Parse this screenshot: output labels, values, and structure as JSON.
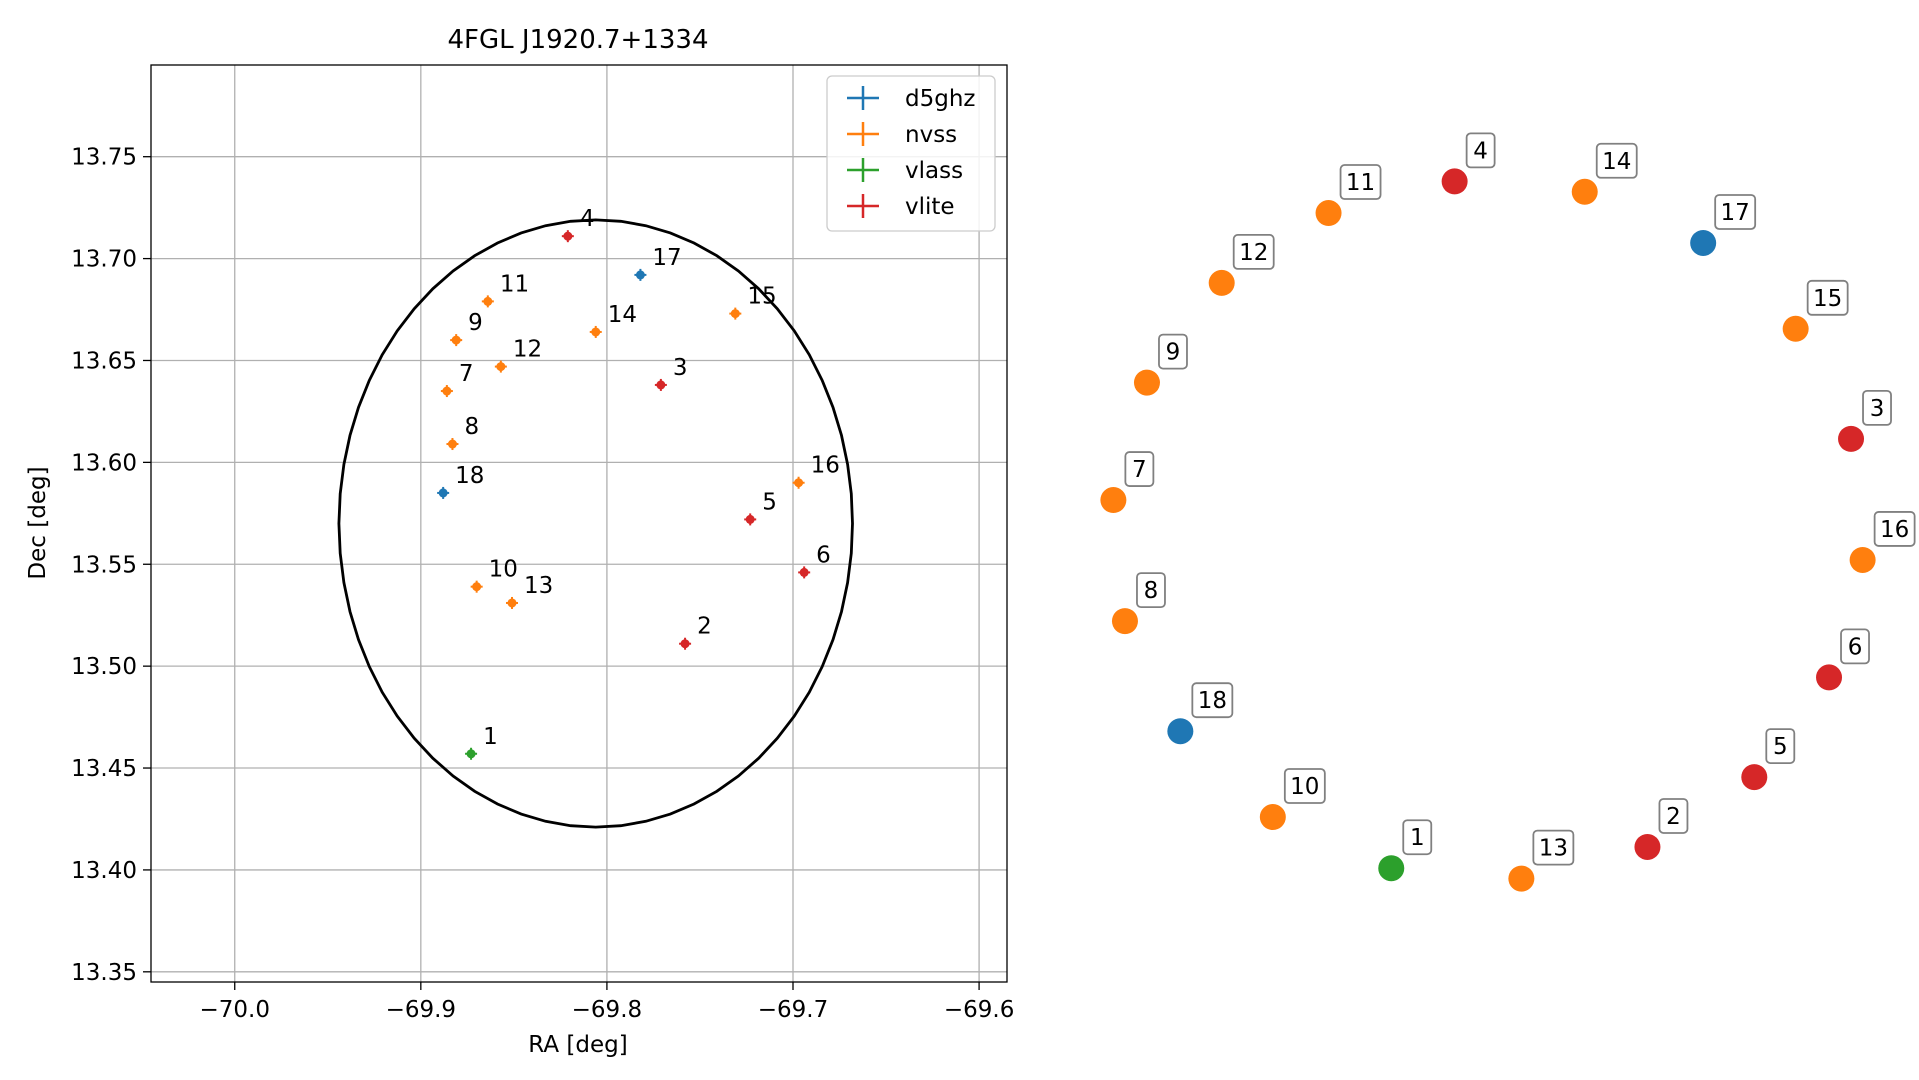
{
  "chart_data": [
    {
      "type": "scatter",
      "title": "4FGL J1920.7+1334",
      "xlabel": "RA [deg]",
      "ylabel": "Dec [deg]",
      "xlim": [
        -70.045,
        -69.585
      ],
      "ylim": [
        13.345,
        13.795
      ],
      "xticks": [
        -70.0,
        -69.9,
        -69.8,
        -69.7,
        -69.6
      ],
      "xtick_labels": [
        "−70.0",
        "−69.9",
        "−69.8",
        "−69.7",
        "−69.6"
      ],
      "yticks": [
        13.35,
        13.4,
        13.45,
        13.5,
        13.55,
        13.6,
        13.65,
        13.7,
        13.75
      ],
      "ytick_labels": [
        "13.35",
        "13.40",
        "13.45",
        "13.50",
        "13.55",
        "13.60",
        "13.65",
        "13.70",
        "13.75"
      ],
      "grid": true,
      "legend_position": "top-right",
      "error_ellipse": {
        "center": [
          -69.806,
          13.57
        ],
        "semi_major_ra": 0.138,
        "semi_minor_dec": 0.149
      },
      "series": [
        {
          "name": "d5ghz",
          "color": "#1f77b4",
          "points": [
            {
              "label": "17",
              "x": -69.782,
              "y": 13.692
            },
            {
              "label": "18",
              "x": -69.888,
              "y": 13.585
            }
          ]
        },
        {
          "name": "nvss",
          "color": "#ff7f0e",
          "points": [
            {
              "label": "7",
              "x": -69.886,
              "y": 13.635
            },
            {
              "label": "8",
              "x": -69.883,
              "y": 13.609
            },
            {
              "label": "9",
              "x": -69.881,
              "y": 13.66
            },
            {
              "label": "10",
              "x": -69.87,
              "y": 13.539
            },
            {
              "label": "11",
              "x": -69.864,
              "y": 13.679
            },
            {
              "label": "12",
              "x": -69.857,
              "y": 13.647
            },
            {
              "label": "13",
              "x": -69.851,
              "y": 13.531
            },
            {
              "label": "14",
              "x": -69.806,
              "y": 13.664
            },
            {
              "label": "15",
              "x": -69.731,
              "y": 13.673
            },
            {
              "label": "16",
              "x": -69.697,
              "y": 13.59
            }
          ]
        },
        {
          "name": "vlass",
          "color": "#2ca02c",
          "points": [
            {
              "label": "1",
              "x": -69.873,
              "y": 13.457
            }
          ]
        },
        {
          "name": "vlite",
          "color": "#d62728",
          "points": [
            {
              "label": "2",
              "x": -69.758,
              "y": 13.511
            },
            {
              "label": "3",
              "x": -69.771,
              "y": 13.638
            },
            {
              "label": "4",
              "x": -69.821,
              "y": 13.711
            },
            {
              "label": "5",
              "x": -69.723,
              "y": 13.572
            },
            {
              "label": "6",
              "x": -69.694,
              "y": 13.546
            }
          ]
        }
      ]
    },
    {
      "type": "scatter",
      "title": "",
      "axes": false,
      "nodes": [
        {
          "label": "1",
          "series": "vlass"
        },
        {
          "label": "13",
          "series": "nvss"
        },
        {
          "label": "2",
          "series": "vlite"
        },
        {
          "label": "5",
          "series": "vlite"
        },
        {
          "label": "6",
          "series": "vlite"
        },
        {
          "label": "16",
          "series": "nvss"
        },
        {
          "label": "3",
          "series": "vlite"
        },
        {
          "label": "15",
          "series": "nvss"
        },
        {
          "label": "17",
          "series": "d5ghz"
        },
        {
          "label": "14",
          "series": "nvss"
        },
        {
          "label": "4",
          "series": "vlite"
        },
        {
          "label": "11",
          "series": "nvss"
        },
        {
          "label": "12",
          "series": "nvss"
        },
        {
          "label": "9",
          "series": "nvss"
        },
        {
          "label": "7",
          "series": "nvss"
        },
        {
          "label": "8",
          "series": "nvss"
        },
        {
          "label": "18",
          "series": "d5ghz"
        },
        {
          "label": "10",
          "series": "nvss"
        }
      ]
    }
  ]
}
